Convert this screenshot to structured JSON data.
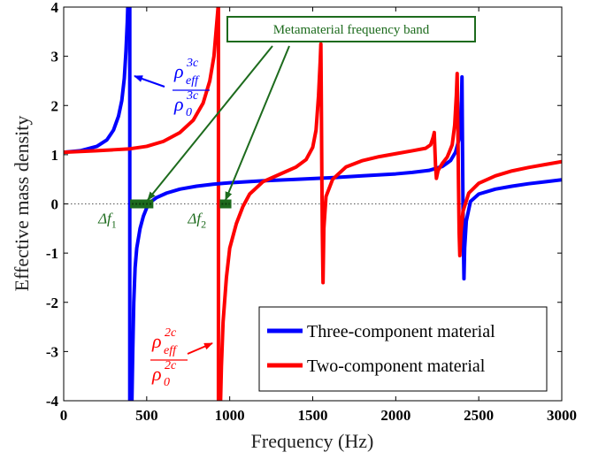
{
  "colors": {
    "three_component": "#0000ff",
    "two_component": "#ff0000",
    "annotation": "#1d6b1d"
  },
  "chart_data": {
    "type": "line",
    "xlabel": "Frequency (Hz)",
    "ylabel": "Effective mass density",
    "xlim": [
      0,
      3000
    ],
    "ylim": [
      -4,
      4
    ],
    "xticks": [
      0,
      500,
      1000,
      1500,
      2000,
      2500,
      3000
    ],
    "yticks": [
      -4,
      -3,
      -2,
      -1,
      0,
      1,
      2,
      3,
      4
    ],
    "ytick_labels": [
      "-4",
      "-3",
      "-2",
      "-1",
      "0",
      "1",
      "2",
      "3",
      "4"
    ],
    "grid": false,
    "legend_position": "bottom-right",
    "zero_line": "dotted",
    "series": [
      {
        "name": "Three-component material",
        "color": "#0000ff",
        "segments": [
          [
            [
              0,
              1.05
            ],
            [
              100,
              1.08
            ],
            [
              200,
              1.17
            ],
            [
              260,
              1.3
            ],
            [
              300,
              1.5
            ],
            [
              330,
              1.78
            ],
            [
              350,
              2.1
            ],
            [
              365,
              2.55
            ],
            [
              375,
              3.1
            ],
            [
              383,
              3.7
            ],
            [
              386,
              4.0
            ]
          ],
          [
            [
              411,
              -4.0
            ],
            [
              416,
              -3.0
            ],
            [
              422,
              -2.0
            ],
            [
              430,
              -1.3
            ],
            [
              440,
              -0.9
            ],
            [
              460,
              -0.5
            ],
            [
              480,
              -0.25
            ],
            [
              500,
              -0.08
            ],
            [
              520,
              0.03
            ],
            [
              560,
              0.13
            ],
            [
              620,
              0.22
            ],
            [
              700,
              0.3
            ],
            [
              800,
              0.36
            ],
            [
              900,
              0.4
            ],
            [
              1000,
              0.43
            ],
            [
              1200,
              0.47
            ],
            [
              1400,
              0.5
            ],
            [
              1600,
              0.53
            ],
            [
              1800,
              0.57
            ],
            [
              2000,
              0.61
            ],
            [
              2100,
              0.64
            ],
            [
              2200,
              0.68
            ],
            [
              2280,
              0.76
            ],
            [
              2330,
              0.88
            ],
            [
              2360,
              1.05
            ],
            [
              2380,
              1.3
            ],
            [
              2390,
              1.65
            ],
            [
              2396,
              2.1
            ],
            [
              2399,
              2.58
            ],
            [
              2402,
              1.2
            ],
            [
              2405,
              0.0
            ],
            [
              2408,
              -0.9
            ],
            [
              2411,
              -1.52
            ],
            [
              2415,
              -0.9
            ],
            [
              2425,
              -0.35
            ],
            [
              2450,
              0.05
            ],
            [
              2500,
              0.2
            ],
            [
              2600,
              0.3
            ],
            [
              2700,
              0.36
            ],
            [
              2800,
              0.41
            ],
            [
              2900,
              0.45
            ],
            [
              3000,
              0.49
            ]
          ]
        ]
      },
      {
        "name": "Two-component material",
        "color": "#ff0000",
        "segments": [
          [
            [
              0,
              1.05
            ],
            [
              200,
              1.08
            ],
            [
              300,
              1.1
            ],
            [
              400,
              1.12
            ],
            [
              500,
              1.17
            ],
            [
              600,
              1.27
            ],
            [
              700,
              1.45
            ],
            [
              780,
              1.7
            ],
            [
              840,
              2.05
            ],
            [
              880,
              2.5
            ],
            [
              905,
              3.0
            ],
            [
              920,
              3.6
            ],
            [
              930,
              4.0
            ]
          ],
          [
            [
              945,
              -4.0
            ],
            [
              950,
              -3.3
            ],
            [
              960,
              -2.4
            ],
            [
              980,
              -1.5
            ],
            [
              1000,
              -0.9
            ],
            [
              1040,
              -0.4
            ],
            [
              1080,
              -0.05
            ],
            [
              1120,
              0.2
            ],
            [
              1200,
              0.45
            ],
            [
              1300,
              0.6
            ],
            [
              1400,
              0.75
            ],
            [
              1460,
              0.9
            ],
            [
              1500,
              1.15
            ],
            [
              1520,
              1.5
            ],
            [
              1535,
              2.2
            ],
            [
              1545,
              2.9
            ],
            [
              1549,
              3.25
            ],
            [
              1552,
              2.0
            ],
            [
              1555,
              0.5
            ],
            [
              1558,
              -0.6
            ],
            [
              1562,
              -1.6
            ],
            [
              1567,
              -0.5
            ],
            [
              1580,
              0.15
            ],
            [
              1620,
              0.5
            ],
            [
              1700,
              0.75
            ],
            [
              1800,
              0.88
            ],
            [
              1900,
              0.96
            ],
            [
              2000,
              1.02
            ],
            [
              2100,
              1.08
            ],
            [
              2180,
              1.13
            ],
            [
              2210,
              1.2
            ],
            [
              2225,
              1.35
            ],
            [
              2232,
              1.45
            ],
            [
              2236,
              1.1
            ],
            [
              2240,
              0.75
            ],
            [
              2245,
              0.52
            ],
            [
              2255,
              0.68
            ],
            [
              2280,
              0.82
            ],
            [
              2310,
              0.95
            ],
            [
              2340,
              1.2
            ],
            [
              2355,
              1.6
            ],
            [
              2365,
              2.2
            ],
            [
              2370,
              2.65
            ],
            [
              2374,
              1.6
            ],
            [
              2378,
              0.4
            ],
            [
              2382,
              -0.6
            ],
            [
              2386,
              -1.05
            ],
            [
              2392,
              -0.6
            ],
            [
              2405,
              -0.15
            ],
            [
              2440,
              0.22
            ],
            [
              2500,
              0.42
            ],
            [
              2600,
              0.57
            ],
            [
              2700,
              0.67
            ],
            [
              2800,
              0.74
            ],
            [
              2900,
              0.8
            ],
            [
              3000,
              0.86
            ]
          ]
        ]
      }
    ],
    "vertical_lines": [
      {
        "x": 398,
        "color": "#0000ff"
      },
      {
        "x": 932,
        "color": "#ff0000"
      }
    ],
    "bands": [
      {
        "x0": 400,
        "x1": 540,
        "label": "Δf",
        "sub": "1"
      },
      {
        "x0": 940,
        "x1": 1010,
        "label": "Δf",
        "sub": "2"
      }
    ],
    "band_box_label": "Metamaterial frequency band",
    "anno_three": {
      "rho": "ρ",
      "sup_num": "3c",
      "sub_num": "eff",
      "sub_den": "0",
      "sup_den": "3c"
    },
    "anno_two": {
      "rho": "ρ",
      "sup_num": "2c",
      "sub_num": "eff",
      "sub_den": "0",
      "sup_den": "2c"
    }
  }
}
